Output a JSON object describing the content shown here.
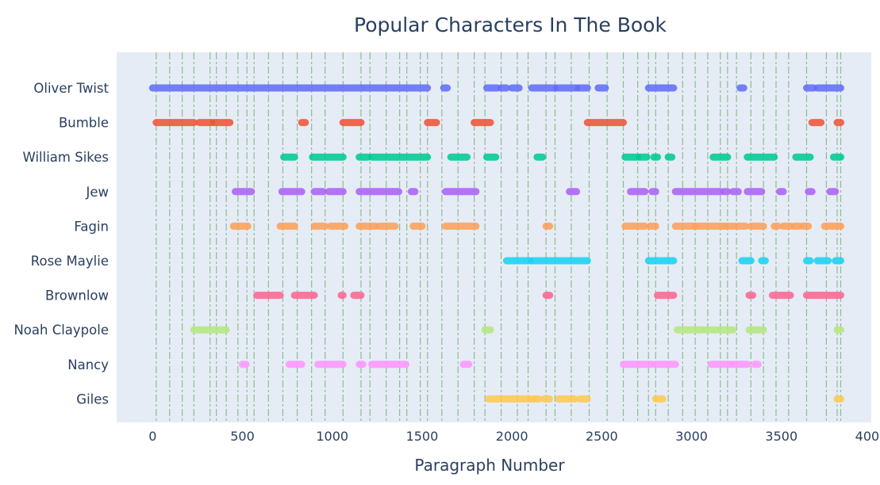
{
  "chart_data": {
    "type": "scatter",
    "title": "Popular Characters In The Book",
    "xlabel": "Paragraph Number",
    "ylabel": "",
    "xlim": [
      -200,
      4000
    ],
    "xticks": [
      0,
      500,
      1000,
      1500,
      2000,
      2500,
      3000,
      3500,
      4000
    ],
    "xtick_labels": [
      "0",
      "500",
      "1000",
      "1500",
      "2000",
      "2500",
      "3000",
      "3500",
      "4000"
    ],
    "grid": false,
    "legend": "none",
    "plot_background": "#e5ecf6",
    "chapter_lines": {
      "color": "#8fbc8f",
      "style": "dash-dot",
      "x": [
        20,
        95,
        165,
        230,
        320,
        355,
        410,
        475,
        525,
        565,
        645,
        725,
        805,
        885,
        960,
        1060,
        1160,
        1210,
        1300,
        1375,
        1415,
        1490,
        1530,
        1610,
        1700,
        1790,
        1850,
        1940,
        2030,
        2090,
        2190,
        2240,
        2330,
        2430,
        2530,
        2620,
        2700,
        2760,
        2800,
        2870,
        2950,
        3020,
        3090,
        3160,
        3200,
        3250,
        3330,
        3400,
        3470,
        3540,
        3640,
        3750,
        3810,
        3830
      ]
    },
    "categories": [
      "Oliver Twist",
      "Bumble",
      "William Sikes",
      "Jew",
      "Fagin",
      "Rose Maylie",
      "Brownlow",
      "Noah Claypole",
      "Nancy",
      "Giles"
    ],
    "series": [
      {
        "color": "#636efa",
        "segments": [
          [
            0,
            1530
          ],
          [
            1620,
            1640
          ],
          [
            1860,
            1920
          ],
          [
            1940,
            1970
          ],
          [
            2000,
            2040
          ],
          [
            2110,
            2240
          ],
          [
            2250,
            2360
          ],
          [
            2370,
            2420
          ],
          [
            2480,
            2520
          ],
          [
            2760,
            2900
          ],
          [
            3270,
            3290
          ],
          [
            3640,
            3680
          ],
          [
            3700,
            3830
          ]
        ]
      },
      {
        "color": "#ef553b",
        "segments": [
          [
            20,
            230
          ],
          [
            260,
            330
          ],
          [
            340,
            430
          ],
          [
            830,
            850
          ],
          [
            1060,
            1160
          ],
          [
            1530,
            1580
          ],
          [
            1790,
            1880
          ],
          [
            2420,
            2620
          ],
          [
            3670,
            3720
          ],
          [
            3810,
            3830
          ]
        ]
      },
      {
        "color": "#00cc96",
        "segments": [
          [
            730,
            790
          ],
          [
            890,
            1060
          ],
          [
            1150,
            1200
          ],
          [
            1220,
            1530
          ],
          [
            1660,
            1750
          ],
          [
            1860,
            1910
          ],
          [
            2140,
            2170
          ],
          [
            2630,
            2700
          ],
          [
            2710,
            2750
          ],
          [
            2790,
            2810
          ],
          [
            2870,
            2890
          ],
          [
            3120,
            3200
          ],
          [
            3310,
            3460
          ],
          [
            3580,
            3660
          ],
          [
            3790,
            3830
          ]
        ]
      },
      {
        "color": "#ab63fa",
        "segments": [
          [
            460,
            550
          ],
          [
            720,
            830
          ],
          [
            900,
            950
          ],
          [
            980,
            1060
          ],
          [
            1150,
            1370
          ],
          [
            1440,
            1460
          ],
          [
            1630,
            1800
          ],
          [
            2320,
            2360
          ],
          [
            2660,
            2740
          ],
          [
            2780,
            2800
          ],
          [
            2910,
            3160
          ],
          [
            3180,
            3200
          ],
          [
            3230,
            3260
          ],
          [
            3310,
            3390
          ],
          [
            3490,
            3510
          ],
          [
            3650,
            3670
          ],
          [
            3770,
            3800
          ]
        ]
      },
      {
        "color": "#ffa15a",
        "segments": [
          [
            450,
            530
          ],
          [
            710,
            790
          ],
          [
            900,
            960
          ],
          [
            990,
            1070
          ],
          [
            1150,
            1240
          ],
          [
            1260,
            1350
          ],
          [
            1450,
            1500
          ],
          [
            1630,
            1800
          ],
          [
            2190,
            2210
          ],
          [
            2630,
            2740
          ],
          [
            2770,
            2800
          ],
          [
            2910,
            3020
          ],
          [
            3020,
            3180
          ],
          [
            3190,
            3240
          ],
          [
            3260,
            3300
          ],
          [
            3330,
            3400
          ],
          [
            3460,
            3480
          ],
          [
            3510,
            3550
          ],
          [
            3570,
            3600
          ],
          [
            3620,
            3650
          ],
          [
            3740,
            3830
          ]
        ]
      },
      {
        "color": "#19d3f3",
        "segments": [
          [
            1970,
            2100
          ],
          [
            2110,
            2420
          ],
          [
            2760,
            2900
          ],
          [
            3280,
            3330
          ],
          [
            3390,
            3410
          ],
          [
            3640,
            3660
          ],
          [
            3700,
            3760
          ],
          [
            3800,
            3830
          ]
        ]
      },
      {
        "color": "#ff6692",
        "segments": [
          [
            580,
            710
          ],
          [
            790,
            900
          ],
          [
            1050,
            1060
          ],
          [
            1120,
            1160
          ],
          [
            2190,
            2210
          ],
          [
            2810,
            2900
          ],
          [
            3320,
            3340
          ],
          [
            3450,
            3550
          ],
          [
            3640,
            3830
          ]
        ]
      },
      {
        "color": "#b6e880",
        "segments": [
          [
            230,
            410
          ],
          [
            1850,
            1880
          ],
          [
            2920,
            3060
          ],
          [
            3080,
            3140
          ],
          [
            3160,
            3230
          ],
          [
            3320,
            3400
          ],
          [
            3810,
            3830
          ]
        ]
      },
      {
        "color": "#ff97ff",
        "segments": [
          [
            500,
            520
          ],
          [
            760,
            830
          ],
          [
            920,
            1060
          ],
          [
            1150,
            1170
          ],
          [
            1220,
            1410
          ],
          [
            1730,
            1760
          ],
          [
            2620,
            2780
          ],
          [
            2800,
            2910
          ],
          [
            3110,
            3220
          ],
          [
            3230,
            3310
          ],
          [
            3350,
            3370
          ]
        ]
      },
      {
        "color": "#fecb52",
        "segments": [
          [
            1870,
            2090
          ],
          [
            2100,
            2120
          ],
          [
            2130,
            2150
          ],
          [
            2180,
            2210
          ],
          [
            2260,
            2350
          ],
          [
            2380,
            2420
          ],
          [
            2800,
            2840
          ],
          [
            3810,
            3830
          ]
        ]
      }
    ]
  }
}
